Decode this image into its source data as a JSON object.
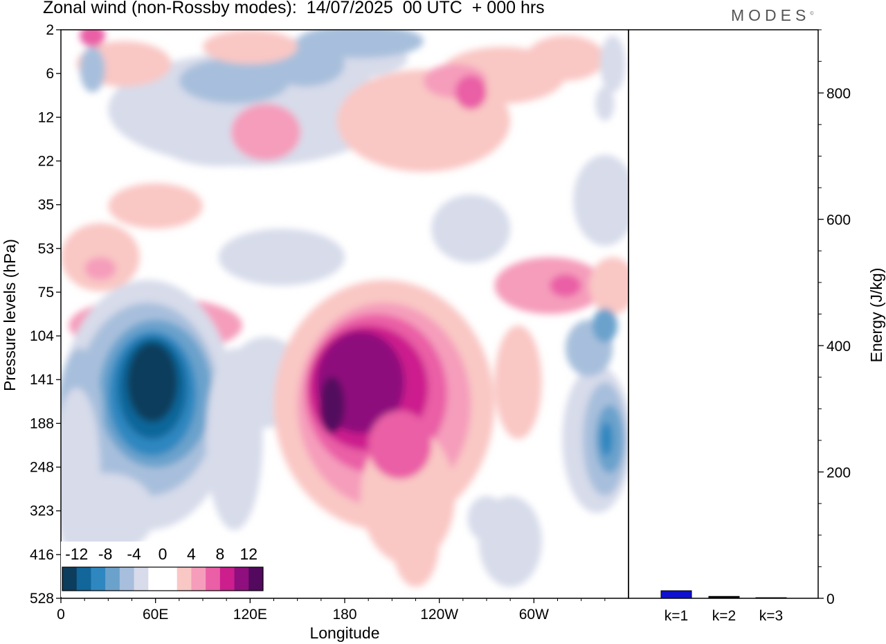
{
  "header": {
    "title": "Zonal wind (non-Rossby modes):  14/07/2025  00 UTC  + 000 hrs",
    "brand": "MODES",
    "brand_mark": "©"
  },
  "colors": {
    "scale": [
      "#0d3d5c",
      "#11669a",
      "#2f87c0",
      "#6ba2cc",
      "#a7bfdc",
      "#d7dbea",
      "#ffffff",
      "#ffffff",
      "#f9c7c4",
      "#f59dbb",
      "#ea5fa6",
      "#cc1e8d",
      "#8e0f7d",
      "#52095e"
    ],
    "bar": "#1010d0"
  },
  "chart_data": [
    {
      "type": "heatmap",
      "title": "Zonal wind (non-Rossby modes):  14/07/2025  00 UTC  + 000 hrs",
      "xlabel": "Longitude",
      "ylabel": "Pressure levels (hPa)",
      "x_ticks": [
        "0",
        "60E",
        "120E",
        "180",
        "120W",
        "60W"
      ],
      "x_tick_degrees": [
        0,
        60,
        120,
        180,
        240,
        300
      ],
      "xlim": [
        0,
        360
      ],
      "y_ticks": [
        "2",
        "6",
        "12",
        "22",
        "35",
        "53",
        "75",
        "104",
        "141",
        "188",
        "248",
        "323",
        "416",
        "528"
      ],
      "y_axis": "pressure levels, top to bottom",
      "colorbar": {
        "labels": [
          "-12",
          "-8",
          "-4",
          "0",
          "4",
          "8",
          "12"
        ],
        "bounds": [
          -14,
          -12,
          -10,
          -8,
          -6,
          -4,
          -2,
          0,
          2,
          4,
          6,
          8,
          10,
          12,
          14
        ]
      },
      "features": [
        {
          "description": "strong easterly core",
          "lon": [
            40,
            78
          ],
          "levels": [
            "104",
            "248"
          ],
          "peak": -14
        },
        {
          "description": "westerly jet core",
          "lon": [
            165,
            255
          ],
          "levels": [
            "104",
            "323"
          ],
          "peak": 14
        },
        {
          "description": "easterly patch",
          "lon": [
            340,
            360
          ],
          "levels": [
            "141",
            "323"
          ],
          "peak": -10
        },
        {
          "description": "upper-level alternating bands",
          "lon": [
            0,
            360
          ],
          "levels": [
            "2",
            "22"
          ],
          "peak": 8
        }
      ]
    },
    {
      "type": "bar",
      "categories": [
        "k=1",
        "k=2",
        "k=3"
      ],
      "values": [
        12,
        3,
        1
      ],
      "ylabel": "Energy (J/kg)",
      "ylim": [
        0,
        900
      ],
      "y_ticks": [
        0,
        200,
        400,
        600,
        800
      ],
      "y_minor_step": 50
    }
  ]
}
